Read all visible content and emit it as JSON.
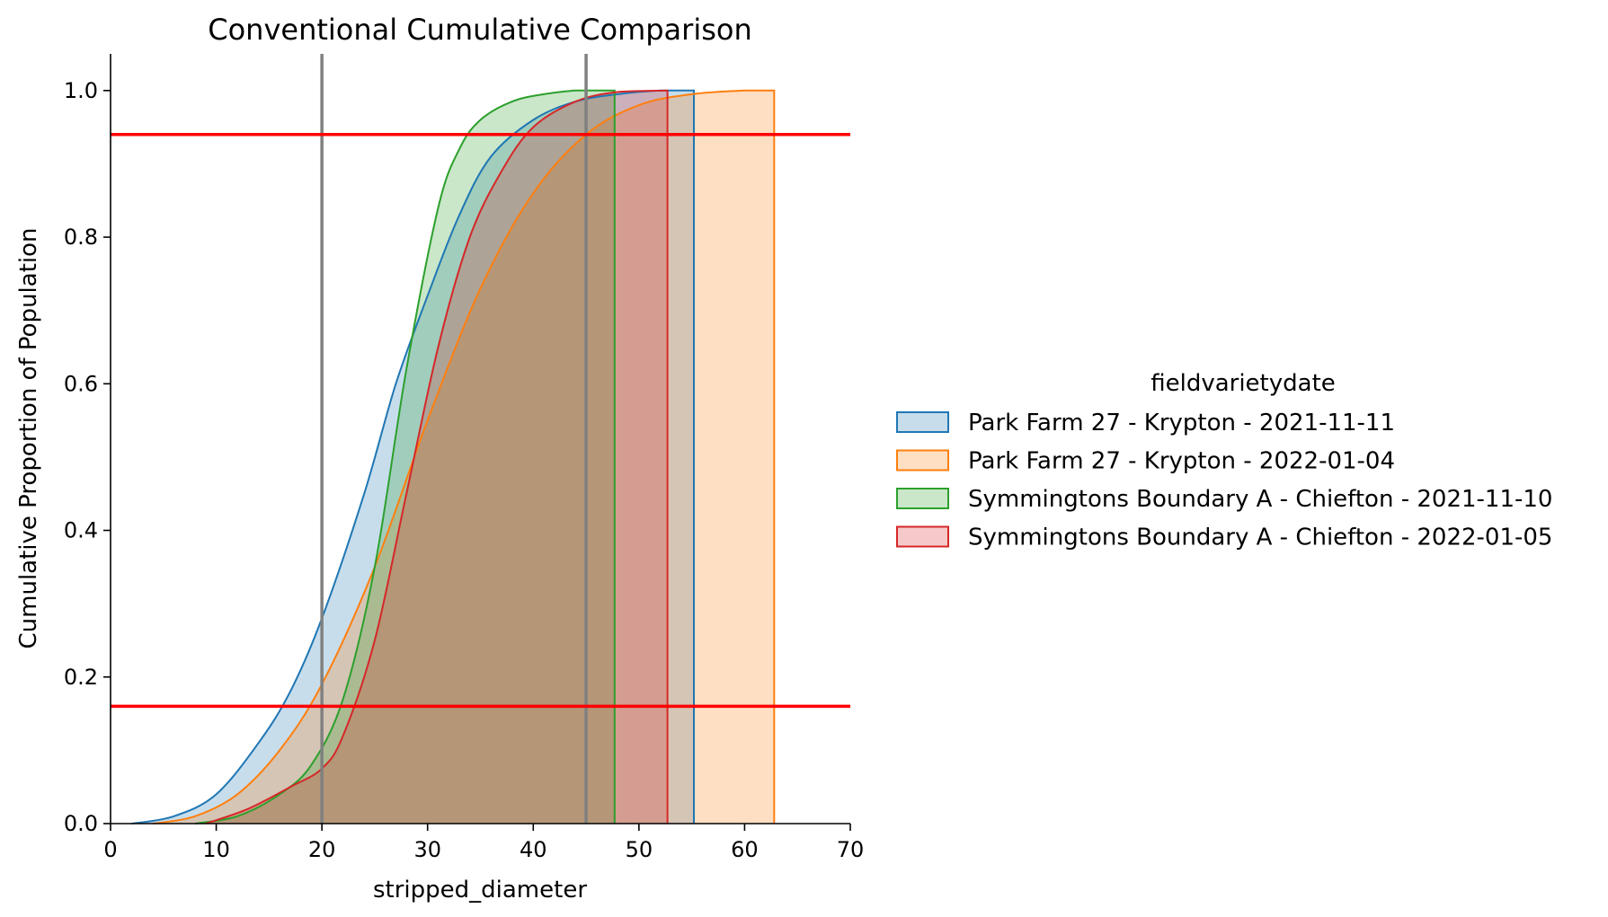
{
  "chart_data": {
    "type": "area",
    "title": "Conventional Cumulative Comparison",
    "xlabel": "stripped_diameter",
    "ylabel": "Cumulative Proportion of Population",
    "xlim": [
      0,
      70
    ],
    "ylim": [
      0,
      1.05
    ],
    "x_ticks": [
      "0",
      "10",
      "20",
      "30",
      "40",
      "50",
      "60",
      "70"
    ],
    "y_ticks": [
      "0.0",
      "0.2",
      "0.4",
      "0.6",
      "0.8",
      "1.0"
    ],
    "grid": false,
    "legend": {
      "title": "fieldvarietydate",
      "placement": "center-right outside"
    },
    "reference_lines": {
      "vertical_x": [
        20,
        45
      ],
      "vertical_color": "#808080",
      "horizontal_y": [
        0.16,
        0.94
      ],
      "horizontal_color": "#ff0000"
    },
    "series": [
      {
        "name": "Park Farm 27 - Krypton - 2021-11-11",
        "color": "#1f77b4",
        "x": [
          2,
          6,
          10,
          14,
          17,
          20,
          24,
          27,
          30,
          33,
          36,
          40,
          44,
          48,
          52,
          55.2
        ],
        "y": [
          0,
          0.01,
          0.04,
          0.11,
          0.18,
          0.28,
          0.45,
          0.6,
          0.72,
          0.83,
          0.91,
          0.96,
          0.985,
          0.995,
          1.0,
          1.0
        ]
      },
      {
        "name": "Park Farm 27 - Krypton - 2022-01-04",
        "color": "#ff7f0e",
        "x": [
          4,
          8,
          12,
          16,
          20,
          25,
          30,
          35,
          40,
          45,
          50,
          55,
          60,
          62.8
        ],
        "y": [
          0,
          0.01,
          0.04,
          0.1,
          0.19,
          0.35,
          0.55,
          0.73,
          0.86,
          0.94,
          0.98,
          0.995,
          1.0,
          1.0
        ]
      },
      {
        "name": "Symmingtons Boundary A - Chiefton - 2021-11-10",
        "color": "#2ca02c",
        "x": [
          8,
          12,
          16,
          19,
          22,
          25,
          28,
          31,
          33,
          35,
          38,
          41,
          44,
          47.7
        ],
        "y": [
          0,
          0.01,
          0.04,
          0.08,
          0.17,
          0.35,
          0.62,
          0.84,
          0.92,
          0.96,
          0.985,
          0.995,
          1.0,
          1.0
        ]
      },
      {
        "name": "Symmingtons Boundary A - Chiefton - 2022-01-05",
        "color": "#d62728",
        "x": [
          9,
          13,
          17,
          20,
          22,
          25,
          28,
          31,
          34,
          37,
          40,
          44,
          48,
          52.7
        ],
        "y": [
          0,
          0.02,
          0.05,
          0.075,
          0.12,
          0.25,
          0.45,
          0.65,
          0.8,
          0.89,
          0.95,
          0.985,
          0.998,
          1.0
        ]
      }
    ]
  }
}
